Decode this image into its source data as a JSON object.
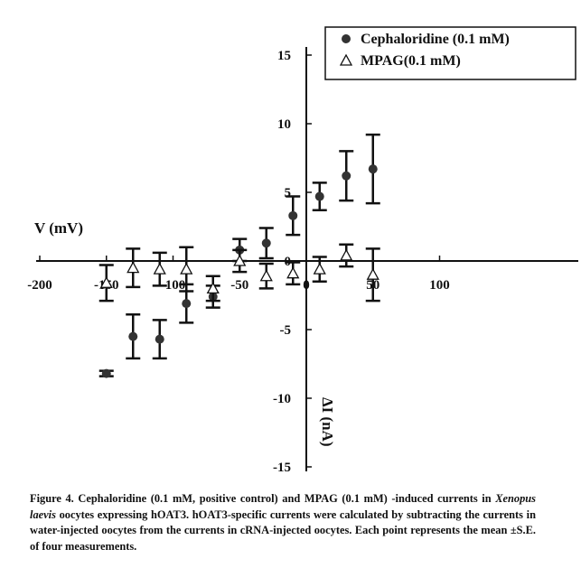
{
  "chart_data": {
    "type": "scatter",
    "xlabel": "V (mV)",
    "ylabel": "ΔI (nA)",
    "xlim": [
      -200,
      100
    ],
    "ylim": [
      -15,
      15
    ],
    "xticks": [
      "-200",
      "-150",
      "-100",
      "-50",
      "0",
      "50",
      "100"
    ],
    "yticks": [
      "15",
      "10",
      "5",
      "0",
      "-5",
      "-10",
      "-15"
    ],
    "x": [
      -150,
      -130,
      -110,
      -90,
      -70,
      -50,
      -30,
      -10,
      10,
      30,
      50
    ],
    "series": [
      {
        "name": "Cephaloridine (0.1 mM)",
        "marker": "filled-circle",
        "values": [
          -8.2,
          -5.5,
          -5.7,
          -3.1,
          -2.6,
          0.8,
          1.3,
          3.3,
          4.7,
          6.2,
          6.7
        ],
        "errors": [
          0.2,
          1.6,
          1.4,
          1.4,
          0.8,
          0.8,
          1.1,
          1.4,
          1.0,
          1.8,
          2.5
        ]
      },
      {
        "name": "MPAG(0.1 mM)",
        "marker": "open-triangle",
        "values": [
          -1.6,
          -0.5,
          -0.6,
          -0.6,
          -2.0,
          0.0,
          -1.1,
          -0.9,
          -0.6,
          0.4,
          -1.0
        ],
        "errors": [
          1.3,
          1.4,
          1.2,
          1.6,
          0.9,
          0.8,
          0.9,
          0.8,
          0.9,
          0.8,
          1.9
        ]
      }
    ],
    "legend": "top-right",
    "grid": false
  },
  "caption": {
    "label": "Figure 4.",
    "text1": " Cephaloridine (0.1 mM, positive control) and MPAG (0.1 mM) -induced currents in ",
    "italic": "Xenopus laevis",
    "text2": " oocytes expressing hOAT3. hOAT3-specific currents were calculated by subtracting the currents in water-injected oocytes from the currents in cRNA-injected oocytes. Each point represents the mean ±S.E. of four measurements."
  }
}
